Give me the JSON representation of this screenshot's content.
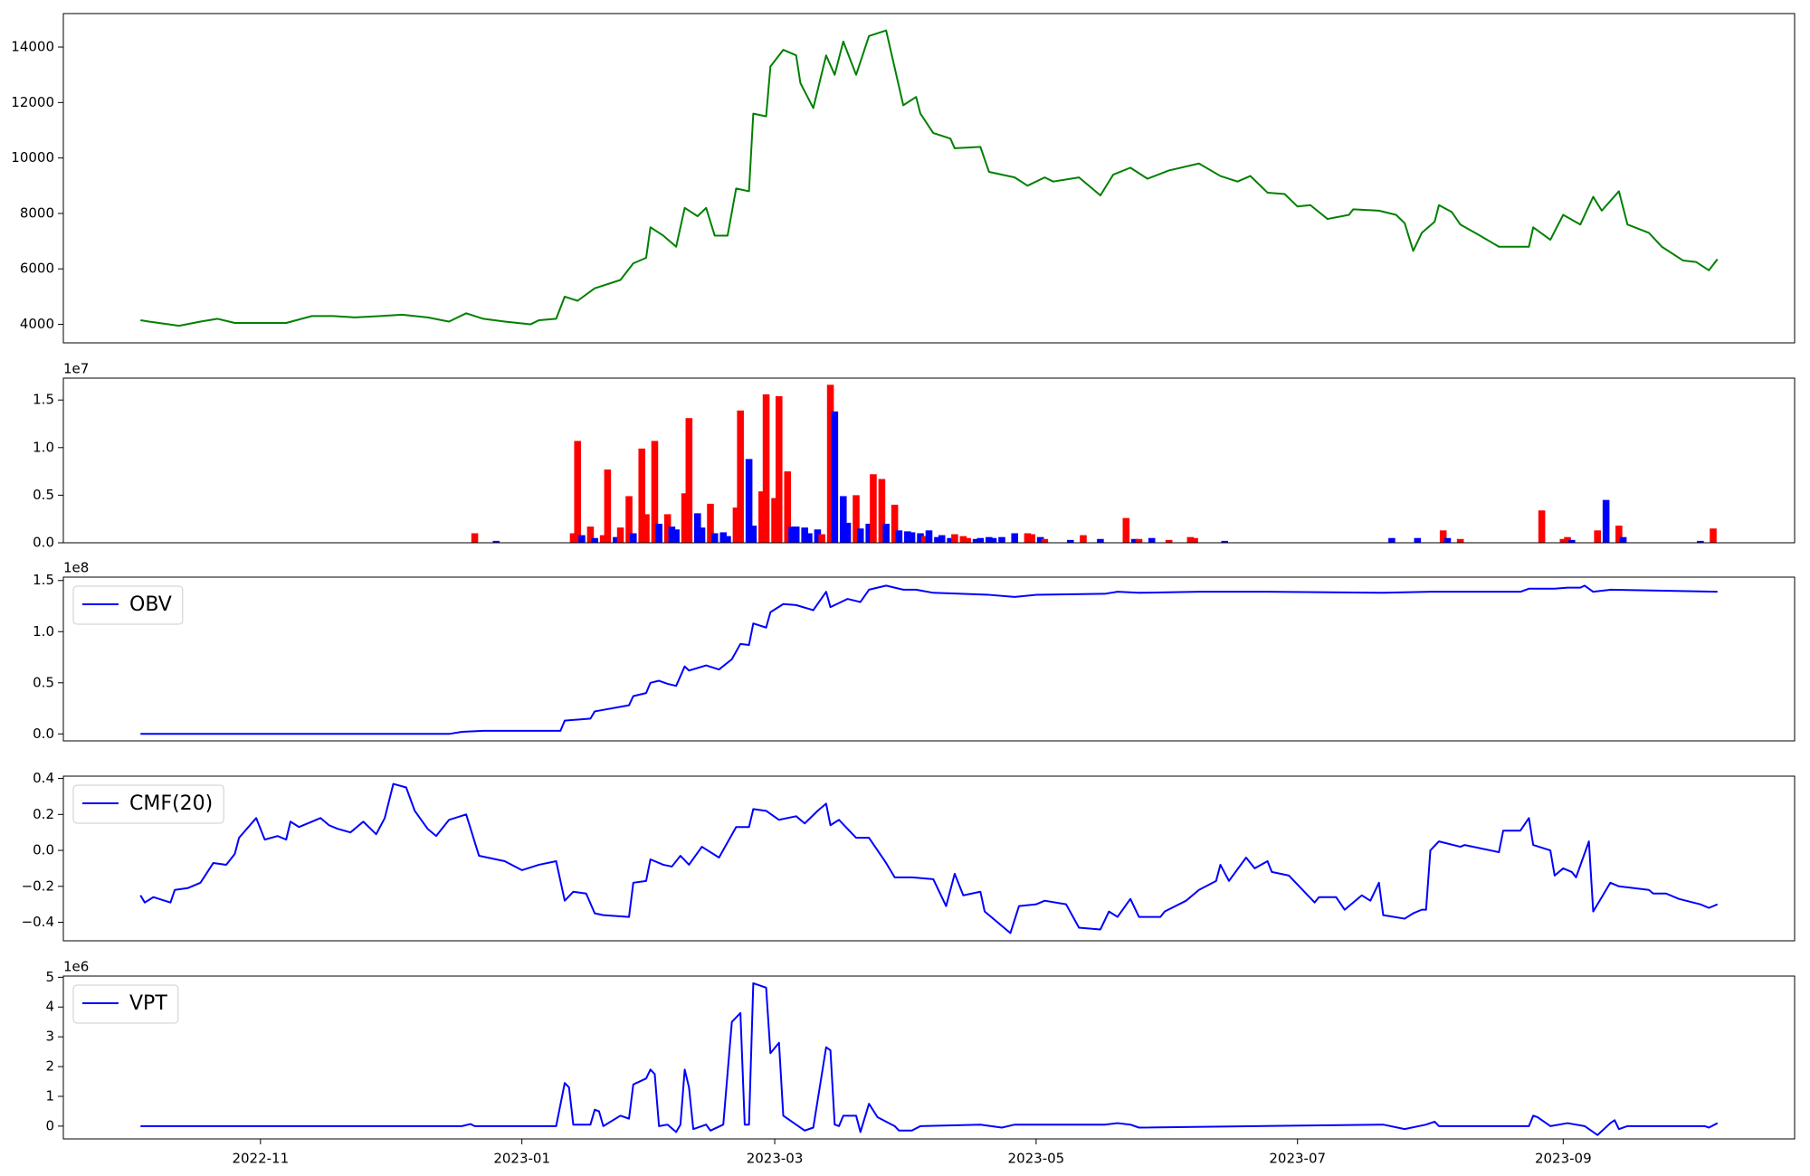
{
  "chart_data": [
    {
      "type": "line",
      "color": "#008000",
      "x": [
        -28,
        -26,
        -19,
        -14,
        -10,
        -6,
        1,
        6,
        12,
        17,
        22,
        28,
        33,
        39,
        44,
        48,
        52,
        57,
        63,
        65,
        69,
        71,
        74,
        78,
        84,
        87,
        90,
        91,
        94,
        97,
        99,
        102,
        104,
        106,
        109,
        111,
        114,
        115,
        118,
        119,
        122,
        125,
        126,
        129,
        132,
        134,
        136,
        139,
        142,
        146,
        150,
        153,
        154,
        157,
        161,
        162,
        168,
        170,
        176,
        179,
        183,
        185,
        191,
        196,
        199,
        203,
        207,
        212,
        219,
        224,
        228,
        231,
        235,
        239,
        242,
        245,
        249,
        254,
        255,
        261,
        265,
        267,
        269,
        271,
        274,
        275,
        278,
        280,
        284,
        289,
        296,
        297,
        301,
        304,
        308,
        311,
        313,
        317,
        319,
        324,
        327,
        332,
        335,
        338,
        340
      ],
      "values": [
        4150,
        4100,
        3950,
        4100,
        4200,
        4050,
        4050,
        4050,
        4300,
        4300,
        4250,
        4300,
        4350,
        4250,
        4100,
        4400,
        4200,
        4100,
        4000,
        4150,
        4200,
        5000,
        4850,
        5300,
        5600,
        6200,
        6400,
        7500,
        7200,
        6800,
        8200,
        7900,
        8200,
        7200,
        7200,
        8900,
        8800,
        11600,
        11500,
        13300,
        13900,
        13700,
        12700,
        11800,
        13700,
        13000,
        14200,
        13000,
        14400,
        14600,
        11900,
        12200,
        11600,
        10900,
        10700,
        10350,
        10400,
        9500,
        9300,
        9000,
        9300,
        9150,
        9300,
        8650,
        9400,
        9650,
        9250,
        9550,
        9800,
        9350,
        9150,
        9350,
        8750,
        8700,
        8250,
        8300,
        7800,
        7950,
        8150,
        8100,
        7950,
        7650,
        6650,
        7300,
        7700,
        8300,
        8050,
        7600,
        7250,
        6800,
        6800,
        7500,
        7050,
        7950,
        7600,
        8600,
        8100,
        8800,
        7600,
        7300,
        6800,
        6300,
        6250,
        5950,
        6350
      ],
      "xlim": [
        -46,
        358
      ],
      "ylim": [
        3333,
        15208
      ],
      "yticks": [
        4000,
        6000,
        8000,
        10000,
        12000,
        14000
      ]
    },
    {
      "type": "bar",
      "offset_text": "1e7",
      "x": [
        50,
        55,
        73,
        74,
        75,
        77,
        78,
        80,
        81,
        83,
        84,
        86,
        87,
        89,
        90,
        92,
        93,
        95,
        96,
        97,
        99,
        100,
        102,
        103,
        105,
        106,
        108,
        109,
        111,
        112,
        114,
        115,
        117,
        118,
        120,
        121,
        123,
        124,
        125,
        127,
        128,
        130,
        131,
        133,
        134,
        136,
        137,
        139,
        140,
        142,
        143,
        145,
        146,
        148,
        149,
        151,
        152,
        154,
        155,
        156,
        158,
        159,
        161,
        162,
        164,
        165,
        167,
        168,
        170,
        171,
        173,
        176,
        179,
        180,
        182,
        183,
        189,
        192,
        196,
        202,
        204,
        205,
        208,
        212,
        217,
        218,
        225,
        264,
        270,
        276,
        277,
        280,
        299,
        304,
        305,
        306,
        312,
        314,
        317,
        318,
        336,
        339
      ],
      "values": [
        0.1,
        0.02,
        0.1,
        1.07,
        0.08,
        0.17,
        0.05,
        0.08,
        0.77,
        0.06,
        0.16,
        0.49,
        0.1,
        0.99,
        0.3,
        1.07,
        0.2,
        0.3,
        0.17,
        0.14,
        0.52,
        1.31,
        0.31,
        0.16,
        0.41,
        0.1,
        0.11,
        0.07,
        0.37,
        1.39,
        0.88,
        0.18,
        0.54,
        1.56,
        0.47,
        1.54,
        0.75,
        0.17,
        0.17,
        0.16,
        0.1,
        0.14,
        0.09,
        1.66,
        1.38,
        0.49,
        0.21,
        0.5,
        0.15,
        0.2,
        0.72,
        0.67,
        0.2,
        0.4,
        0.13,
        0.12,
        0.11,
        0.1,
        0.07,
        0.13,
        0.06,
        0.08,
        0.05,
        0.09,
        0.07,
        0.05,
        0.04,
        0.05,
        0.06,
        0.05,
        0.06,
        0.1,
        0.1,
        0.09,
        0.06,
        0.04,
        0.03,
        0.08,
        0.04,
        0.26,
        0.04,
        0.04,
        0.05,
        0.03,
        0.06,
        0.05,
        0.02,
        0.05,
        0.05,
        0.13,
        0.05,
        0.04,
        0.34,
        0.04,
        0.06,
        0.03,
        0.13,
        0.45,
        0.18,
        0.06,
        0.02,
        0.15
      ],
      "colors": [
        "red",
        "blue",
        "red",
        "red",
        "blue",
        "red",
        "blue",
        "red",
        "red",
        "blue",
        "red",
        "red",
        "blue",
        "red",
        "red",
        "red",
        "blue",
        "red",
        "blue",
        "blue",
        "red",
        "red",
        "blue",
        "blue",
        "red",
        "blue",
        "blue",
        "blue",
        "red",
        "red",
        "blue",
        "blue",
        "red",
        "red",
        "red",
        "red",
        "red",
        "blue",
        "blue",
        "blue",
        "blue",
        "blue",
        "red",
        "red",
        "blue",
        "blue",
        "blue",
        "red",
        "blue",
        "blue",
        "red",
        "red",
        "blue",
        "red",
        "blue",
        "blue",
        "blue",
        "blue",
        "red",
        "blue",
        "blue",
        "blue",
        "blue",
        "red",
        "red",
        "red",
        "blue",
        "blue",
        "blue",
        "blue",
        "blue",
        "blue",
        "red",
        "red",
        "blue",
        "red",
        "blue",
        "red",
        "blue",
        "red",
        "blue",
        "red",
        "blue",
        "red",
        "red",
        "red",
        "blue",
        "blue",
        "blue",
        "red",
        "blue",
        "red",
        "red",
        "red",
        "red",
        "blue",
        "red",
        "blue",
        "red",
        "blue",
        "blue",
        "red"
      ],
      "xlim": [
        -46,
        358
      ],
      "ylim": [
        0,
        1.73
      ],
      "yticks": [
        {
          "value": 0,
          "label": "0.0"
        },
        0.5,
        {
          "value": 1,
          "label": "1.0"
        },
        1.5
      ]
    },
    {
      "type": "line",
      "offset_text": "1e8",
      "legend": "upper left",
      "x": [
        -28,
        20,
        44,
        47,
        52,
        70,
        71,
        74,
        77,
        78,
        86,
        87,
        90,
        91,
        93,
        95,
        97,
        99,
        100,
        104,
        107,
        110,
        112,
        114,
        115,
        118,
        119,
        122,
        125,
        129,
        132,
        133,
        135,
        137,
        140,
        142,
        146,
        150,
        153,
        157,
        170,
        176,
        181,
        197,
        200,
        205,
        219,
        235,
        262,
        273,
        294,
        296,
        302,
        305,
        308,
        309,
        311,
        315,
        340
      ],
      "series": [
        {
          "name": "OBV",
          "color": "#0000ff",
          "values": [
            0,
            0,
            0,
            0.02,
            0.03,
            0.03,
            0.13,
            0.14,
            0.15,
            0.22,
            0.28,
            0.37,
            0.4,
            0.5,
            0.52,
            0.49,
            0.47,
            0.66,
            0.62,
            0.67,
            0.63,
            0.73,
            0.88,
            0.87,
            1.08,
            1.04,
            1.19,
            1.27,
            1.26,
            1.21,
            1.39,
            1.24,
            1.28,
            1.32,
            1.29,
            1.41,
            1.45,
            1.41,
            1.41,
            1.38,
            1.36,
            1.34,
            1.36,
            1.37,
            1.39,
            1.38,
            1.39,
            1.39,
            1.38,
            1.39,
            1.39,
            1.42,
            1.42,
            1.43,
            1.43,
            1.45,
            1.39,
            1.41,
            1.39
          ]
        }
      ],
      "xlim": [
        -46,
        358
      ],
      "ylim": [
        -0.068,
        1.533
      ],
      "yticks": [
        {
          "value": 0,
          "label": "0.0"
        },
        0.5,
        {
          "value": 1,
          "label": "1.0"
        },
        1.5
      ]
    },
    {
      "type": "line",
      "legend": "upper left",
      "x": [
        -28,
        -27,
        -25,
        -21,
        -20,
        -17,
        -14,
        -11,
        -8,
        -6,
        -5,
        -1,
        1,
        4,
        6,
        7,
        9,
        12,
        14,
        16,
        18,
        21,
        24,
        27,
        29,
        31,
        34,
        36,
        39,
        41,
        44,
        48,
        51,
        55,
        57,
        61,
        65,
        69,
        71,
        73,
        76,
        78,
        80,
        86,
        87,
        90,
        91,
        94,
        96,
        98,
        100,
        103,
        107,
        111,
        114,
        115,
        118,
        121,
        125,
        127,
        130,
        132,
        133,
        135,
        139,
        142,
        146,
        148,
        152,
        157,
        160,
        162,
        164,
        168,
        169,
        175,
        177,
        181,
        183,
        188,
        191,
        196,
        198,
        200,
        203,
        205,
        210,
        211,
        216,
        219,
        223,
        224,
        226,
        230,
        232,
        235,
        236,
        240,
        246,
        247,
        251,
        253,
        257,
        259,
        261,
        262,
        267,
        269,
        271,
        272,
        273,
        275,
        280,
        281,
        289,
        290,
        294,
        296,
        297,
        301,
        302,
        304,
        306,
        307,
        310,
        311,
        313,
        315,
        317,
        324,
        325,
        328,
        331,
        336,
        338,
        340
      ],
      "series": [
        {
          "name": "CMF(20)",
          "color": "#0000ff",
          "values": [
            -0.25,
            -0.29,
            -0.26,
            -0.29,
            -0.22,
            -0.21,
            -0.18,
            -0.07,
            -0.08,
            -0.02,
            0.07,
            0.18,
            0.06,
            0.08,
            0.06,
            0.16,
            0.13,
            0.16,
            0.18,
            0.14,
            0.12,
            0.1,
            0.16,
            0.09,
            0.18,
            0.37,
            0.35,
            0.22,
            0.12,
            0.08,
            0.17,
            0.2,
            -0.03,
            -0.05,
            -0.06,
            -0.11,
            -0.08,
            -0.06,
            -0.28,
            -0.23,
            -0.24,
            -0.35,
            -0.36,
            -0.37,
            -0.18,
            -0.17,
            -0.05,
            -0.08,
            -0.09,
            -0.03,
            -0.08,
            0.02,
            -0.04,
            0.13,
            0.13,
            0.23,
            0.22,
            0.17,
            0.19,
            0.15,
            0.22,
            0.26,
            0.14,
            0.17,
            0.07,
            0.07,
            -0.07,
            -0.15,
            -0.15,
            -0.16,
            -0.31,
            -0.13,
            -0.25,
            -0.23,
            -0.34,
            -0.46,
            -0.31,
            -0.3,
            -0.28,
            -0.3,
            -0.43,
            -0.44,
            -0.34,
            -0.37,
            -0.27,
            -0.37,
            -0.37,
            -0.34,
            -0.28,
            -0.22,
            -0.17,
            -0.08,
            -0.17,
            -0.04,
            -0.1,
            -0.06,
            -0.12,
            -0.14,
            -0.29,
            -0.26,
            -0.26,
            -0.33,
            -0.25,
            -0.28,
            -0.18,
            -0.36,
            -0.38,
            -0.35,
            -0.33,
            -0.33,
            0,
            0.05,
            0.02,
            0.03,
            -0.01,
            0.11,
            0.11,
            0.18,
            0.03,
            0,
            -0.14,
            -0.1,
            -0.12,
            -0.15,
            0.05,
            -0.34,
            -0.26,
            -0.18,
            -0.2,
            -0.22,
            -0.24,
            -0.24,
            -0.27,
            -0.3,
            -0.32,
            -0.3
          ]
        }
      ],
      "xlim": [
        -46,
        358
      ],
      "ylim": [
        -0.503,
        0.413
      ],
      "yticks": [
        {
          "value": -0.4,
          "label": "−0.4"
        },
        {
          "value": -0.2,
          "label": "−0.2"
        },
        {
          "value": 0,
          "label": "0.0"
        },
        0.2,
        0.4
      ]
    },
    {
      "type": "line",
      "offset_text": "1e6",
      "legend": "upper left",
      "x": [
        -28,
        47,
        49,
        50,
        69,
        71,
        72,
        73,
        77,
        78,
        79,
        80,
        84,
        86,
        87,
        90,
        91,
        92,
        93,
        95,
        97,
        98,
        99,
        100,
        101,
        104,
        105,
        108,
        110,
        112,
        113,
        114,
        115,
        118,
        119,
        121,
        122,
        127,
        129,
        132,
        133,
        134,
        135,
        136,
        139,
        140,
        142,
        144,
        148,
        149,
        152,
        154,
        168,
        173,
        176,
        197,
        200,
        203,
        205,
        262,
        267,
        272,
        274,
        275,
        289,
        296,
        297,
        298,
        301,
        305,
        309,
        312,
        315,
        316,
        317,
        319,
        337,
        338,
        340
      ],
      "series": [
        {
          "name": "VPT",
          "color": "#0000ff",
          "values": [
            0,
            0,
            0.07,
            0,
            0,
            1.45,
            1.3,
            0.05,
            0.05,
            0.55,
            0.5,
            0,
            0.35,
            0.25,
            1.4,
            1.6,
            1.9,
            1.75,
            0,
            0.05,
            -0.2,
            0.05,
            1.9,
            1.3,
            -0.1,
            0.05,
            -0.15,
            0.05,
            3.5,
            3.8,
            0.05,
            0.05,
            4.8,
            4.65,
            2.45,
            2.8,
            0.35,
            -0.15,
            -0.05,
            2.65,
            2.55,
            0.05,
            0,
            0.35,
            0.35,
            -0.2,
            0.75,
            0.3,
            0,
            -0.15,
            -0.15,
            0,
            0.05,
            -0.05,
            0.05,
            0.05,
            0.1,
            0.05,
            -0.05,
            0.05,
            -0.1,
            0.05,
            0.15,
            0,
            0,
            0,
            0.35,
            0.3,
            0,
            0.1,
            0,
            -0.3,
            0.1,
            0.2,
            -0.1,
            0,
            0,
            -0.05,
            0.1
          ]
        }
      ],
      "xlim": [
        -46,
        358
      ],
      "ylim": [
        -0.43,
        5.04
      ],
      "yticks": [
        0,
        1,
        2,
        3,
        4,
        5
      ],
      "xticks": [
        {
          "value": 0,
          "label": "2022-11"
        },
        {
          "value": 61,
          "label": "2023-01"
        },
        {
          "value": 120,
          "label": "2023-03"
        },
        {
          "value": 181,
          "label": "2023-05"
        },
        {
          "value": 242,
          "label": "2023-07"
        },
        {
          "value": 304,
          "label": "2023-09"
        }
      ]
    }
  ]
}
